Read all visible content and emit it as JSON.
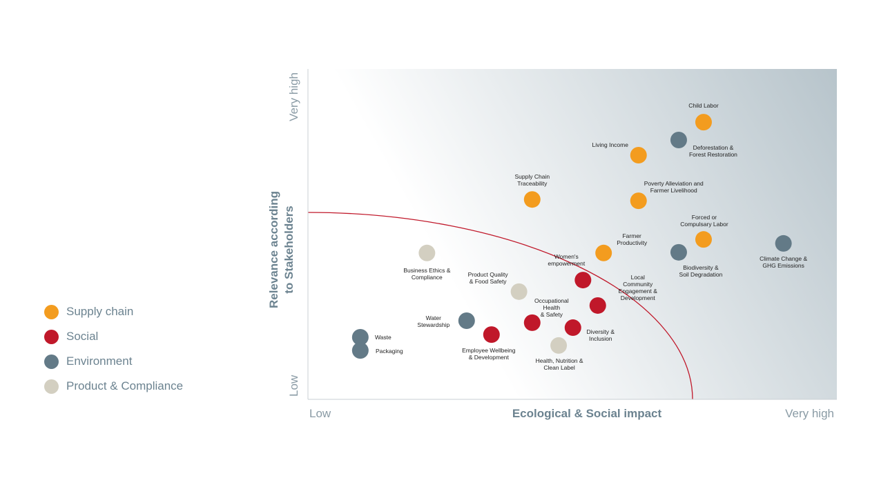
{
  "chart_data": {
    "type": "scatter",
    "x_label": "Ecological & Social impact",
    "y_label": "Relevance according\nto Stakeholders",
    "xlim": [
      0,
      10
    ],
    "ylim": [
      0,
      10
    ],
    "xticks": [
      {
        "value": 0,
        "label": "Low"
      },
      {
        "value": 10,
        "label": "Very high"
      }
    ],
    "yticks": [
      {
        "value": 0,
        "label": "Low"
      },
      {
        "value": 10,
        "label": "Very high"
      }
    ],
    "series": [
      {
        "name": "Supply chain",
        "color": "#f39c1f",
        "labels": [
          "Child Labor",
          "Living Income",
          "Supply Chain\nTraceability",
          "Poverty Alleviation and\nFarmer Livelihood",
          "Forced or\nCompulsary Labor",
          "Farmer\nProductivity"
        ],
        "x": [
          7.48,
          6.25,
          4.24,
          6.25,
          7.48,
          5.59
        ],
        "values": [
          8.39,
          7.39,
          6.05,
          6.01,
          4.84,
          4.43
        ]
      },
      {
        "name": "Social",
        "color": "#c0182a",
        "labels": [
          "Women's\nempowerment",
          "Local\nCommunity\nEngagement &\nDevelopment",
          "Occupational\nHealth\n& Safety",
          "Diversity &\nInclusion",
          "Employee Wellbeing\n& Development"
        ],
        "x": [
          5.2,
          5.48,
          4.24,
          5.01,
          3.47
        ],
        "values": [
          3.61,
          2.84,
          2.32,
          2.17,
          1.96
        ]
      },
      {
        "name": "Environment",
        "color": "#637a87",
        "labels": [
          "Deforestation &\nForest Restoration",
          "Biodiversity &\nSoil Degradation",
          "Climate Change &\nGHG Emissions",
          "Water\nStewardship",
          "Waste",
          "Packaging"
        ],
        "x": [
          7.01,
          7.01,
          8.99,
          3.0,
          0.99,
          0.99
        ],
        "values": [
          7.85,
          4.45,
          4.72,
          2.38,
          1.88,
          1.48
        ]
      },
      {
        "name": "Product & Compliance",
        "color": "#d3cfc1",
        "labels": [
          "Business Ethics &\nCompliance",
          "Product Quality\n& Food Safety",
          "Health, Nutrition &\nClean Label"
        ],
        "x": [
          2.25,
          3.99,
          4.74
        ],
        "values": [
          4.43,
          3.26,
          1.63
        ]
      }
    ]
  }
}
